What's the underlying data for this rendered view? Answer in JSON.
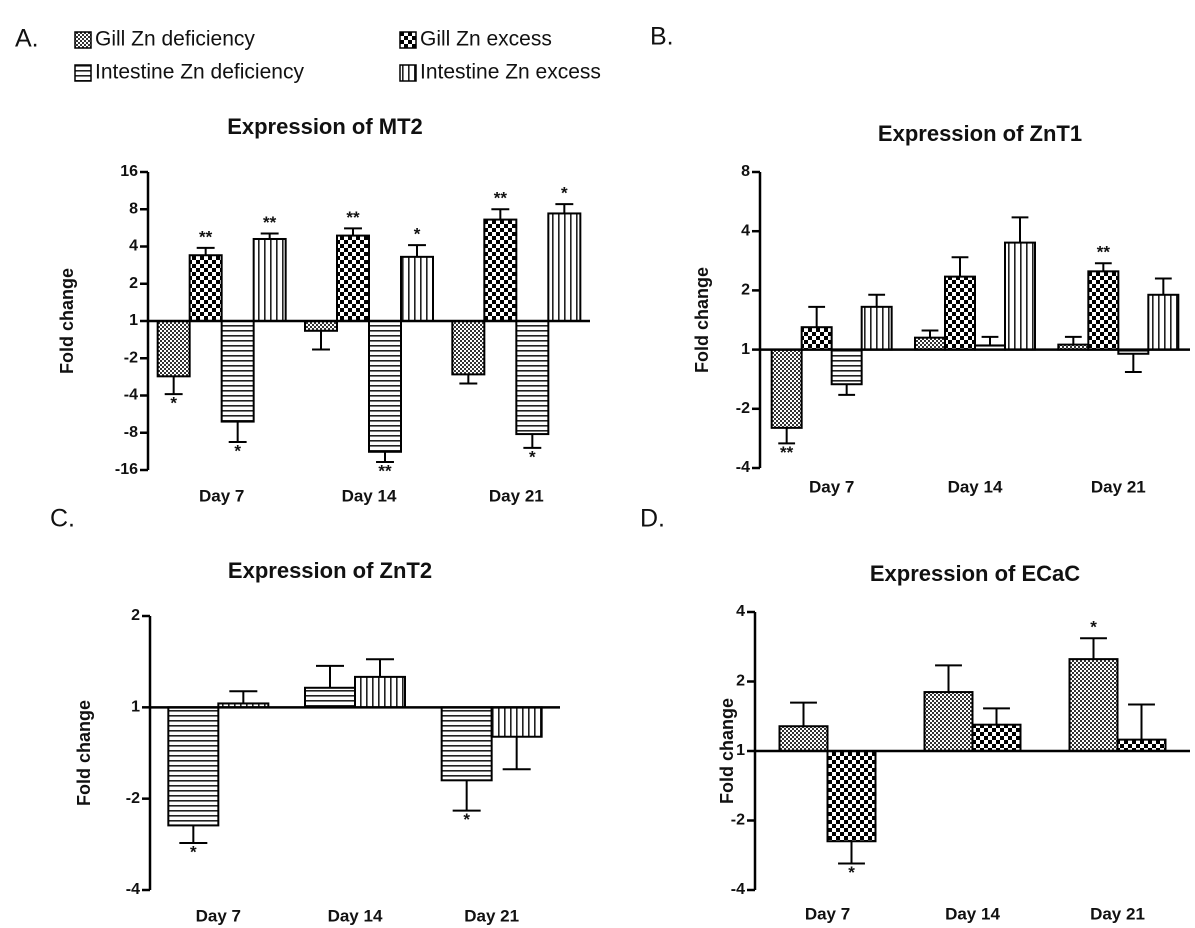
{
  "chart_data": [
    {
      "type": "bar",
      "panel_label": "A.",
      "title": "Expression of MT2",
      "ylabel": "Fold change",
      "scale": "signed-log2",
      "categories": [
        "Day 7",
        "Day 14",
        "Day 21"
      ],
      "ylim": [
        -16,
        16
      ],
      "yticks": [
        -16,
        -8,
        -4,
        -2,
        1,
        2,
        4,
        8,
        16
      ],
      "series": [
        {
          "name": "Gill Zn deficiency",
          "pattern": "fine-check",
          "values": [
            -2.8,
            -1.2,
            -2.7
          ],
          "errors": [
            1.1,
            0.5,
            0.5
          ],
          "significance": [
            "*",
            null,
            null
          ]
        },
        {
          "name": "Gill Zn excess",
          "pattern": "coarse-check",
          "values": [
            3.4,
            4.9,
            6.6
          ],
          "errors": [
            0.5,
            0.7,
            1.4
          ],
          "significance": [
            "**",
            "**",
            "**"
          ]
        },
        {
          "name": "Intestine Zn deficiency",
          "pattern": "horizontal",
          "values": [
            -6.5,
            -11.4,
            -8.2
          ],
          "errors": [
            3.0,
            2.4,
            2.4
          ],
          "significance": [
            "*",
            "**",
            "*"
          ]
        },
        {
          "name": "Intestine Zn excess",
          "pattern": "vertical",
          "values": [
            4.6,
            3.3,
            7.4
          ],
          "errors": [
            0.5,
            0.8,
            1.4
          ],
          "significance": [
            "**",
            "*",
            "*"
          ]
        }
      ]
    },
    {
      "type": "bar",
      "panel_label": "B.",
      "title": "Expression of ZnT1",
      "ylabel": "Fold change",
      "scale": "signed-log2",
      "categories": [
        "Day 7",
        "Day 14",
        "Day 21"
      ],
      "ylim": [
        -4,
        8
      ],
      "yticks": [
        -4,
        -2,
        1,
        2,
        4,
        8
      ],
      "series": [
        {
          "name": "Gill Zn deficiency",
          "pattern": "fine-check",
          "values": [
            -2.5,
            1.15,
            1.06
          ],
          "errors": [
            0.5,
            0.1,
            0.1
          ],
          "significance": [
            "**",
            null,
            null
          ]
        },
        {
          "name": "Gill Zn excess",
          "pattern": "coarse-check",
          "values": [
            1.3,
            2.35,
            2.5
          ],
          "errors": [
            0.35,
            0.6,
            0.25
          ],
          "significance": [
            null,
            null,
            "**"
          ]
        },
        {
          "name": "Intestine Zn deficiency",
          "pattern": "horizontal",
          "values": [
            -1.5,
            1.05,
            -1.05
          ],
          "errors": [
            0.2,
            0.11,
            0.25
          ],
          "significance": [
            null,
            null,
            null
          ]
        },
        {
          "name": "Intestine Zn excess",
          "pattern": "vertical",
          "values": [
            1.65,
            3.5,
            1.9
          ],
          "errors": [
            0.25,
            1.2,
            0.4
          ],
          "significance": [
            null,
            null,
            null
          ]
        }
      ]
    },
    {
      "type": "bar",
      "panel_label": "C.",
      "title": "Expression of ZnT2",
      "ylabel": "Fold change",
      "scale": "signed-log2",
      "categories": [
        "Day 7",
        "Day 14",
        "Day 21"
      ],
      "ylim": [
        -4,
        2
      ],
      "yticks": [
        -4,
        -2,
        1,
        2
      ],
      "series": [
        {
          "name": "Intestine Zn deficiency",
          "pattern": "horizontal",
          "values": [
            -2.45,
            1.16,
            -1.74
          ],
          "errors": [
            0.35,
            0.21,
            0.45
          ],
          "significance": [
            "*",
            null,
            "*"
          ]
        },
        {
          "name": "Intestine Zn excess",
          "pattern": "vertical",
          "values": [
            1.03,
            1.26,
            -1.25
          ],
          "errors": [
            0.1,
            0.18,
            0.35
          ],
          "significance": [
            null,
            null,
            null
          ]
        }
      ]
    },
    {
      "type": "bar",
      "panel_label": "D.",
      "title": "Expression of ECaC",
      "ylabel": "Fold change",
      "scale": "signed-log2",
      "categories": [
        "Day 7",
        "Day 14",
        "Day 21"
      ],
      "ylim": [
        -4,
        4
      ],
      "yticks": [
        -4,
        -2,
        1,
        2,
        4
      ],
      "series": [
        {
          "name": "Gill Zn deficiency",
          "pattern": "fine-check",
          "values": [
            1.28,
            1.8,
            2.5
          ],
          "errors": [
            0.34,
            0.55,
            0.58
          ],
          "significance": [
            null,
            null,
            "*"
          ]
        },
        {
          "name": "Gill Zn excess",
          "pattern": "coarse-check",
          "values": [
            -2.46,
            1.3,
            1.12
          ],
          "errors": [
            0.61,
            0.23,
            0.47
          ],
          "significance": [
            "*",
            null,
            null
          ]
        }
      ]
    }
  ]
}
